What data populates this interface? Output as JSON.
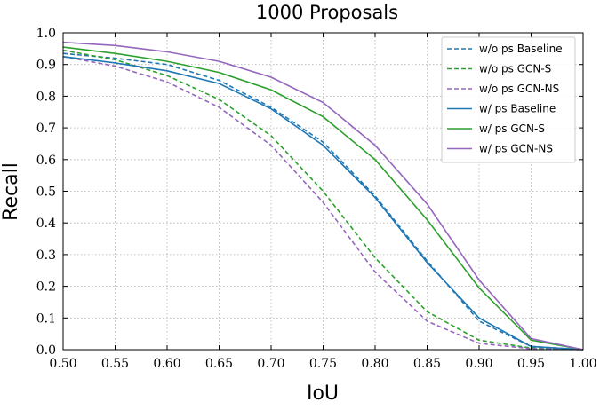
{
  "chart_data": {
    "type": "line",
    "title": "1000 Proposals",
    "xlabel": "IoU",
    "ylabel": "Recall",
    "xlim": [
      0.5,
      1.0
    ],
    "ylim": [
      0.0,
      1.0
    ],
    "xticks": [
      "0.50",
      "0.55",
      "0.60",
      "0.65",
      "0.70",
      "0.75",
      "0.80",
      "0.85",
      "0.90",
      "0.95",
      "1.00"
    ],
    "yticks": [
      "0.0",
      "0.1",
      "0.2",
      "0.3",
      "0.4",
      "0.5",
      "0.6",
      "0.7",
      "0.8",
      "0.9",
      "1.0"
    ],
    "grid": true,
    "legend_position": "top-right",
    "x": [
      0.5,
      0.55,
      0.6,
      0.65,
      0.7,
      0.75,
      0.8,
      0.85,
      0.9,
      0.95,
      1.0
    ],
    "series": [
      {
        "name": "w/o ps Baseline",
        "color": "#1f77b4",
        "dashed": true,
        "values": [
          0.935,
          0.92,
          0.9,
          0.85,
          0.765,
          0.655,
          0.485,
          0.28,
          0.09,
          0.01,
          0.0
        ]
      },
      {
        "name": "w/o ps GCN-S",
        "color": "#2ca02c",
        "dashed": true,
        "values": [
          0.945,
          0.915,
          0.865,
          0.79,
          0.675,
          0.5,
          0.29,
          0.12,
          0.03,
          0.005,
          0.0
        ]
      },
      {
        "name": "w/o ps GCN-NS",
        "color": "#9467bd",
        "dashed": true,
        "values": [
          0.925,
          0.895,
          0.845,
          0.765,
          0.645,
          0.465,
          0.245,
          0.09,
          0.02,
          0.003,
          0.0
        ]
      },
      {
        "name": "w/ ps Baseline",
        "color": "#1f77b4",
        "dashed": false,
        "values": [
          0.925,
          0.905,
          0.88,
          0.84,
          0.76,
          0.645,
          0.48,
          0.275,
          0.1,
          0.01,
          0.0
        ]
      },
      {
        "name": "w/ ps GCN-S",
        "color": "#2ca02c",
        "dashed": false,
        "values": [
          0.955,
          0.935,
          0.91,
          0.875,
          0.82,
          0.735,
          0.6,
          0.41,
          0.195,
          0.03,
          0.0
        ]
      },
      {
        "name": "w/ ps GCN-NS",
        "color": "#9467bd",
        "dashed": false,
        "values": [
          0.97,
          0.96,
          0.94,
          0.91,
          0.86,
          0.78,
          0.645,
          0.46,
          0.22,
          0.035,
          0.0
        ]
      }
    ]
  }
}
